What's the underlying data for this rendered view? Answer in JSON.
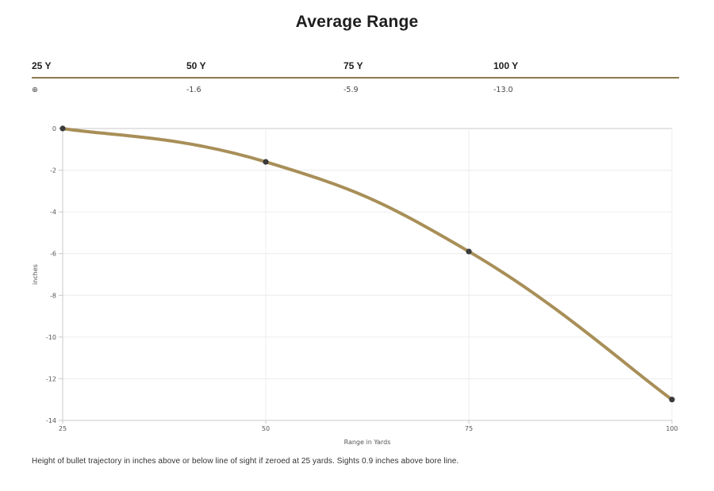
{
  "page": {
    "title": "Average Range",
    "caption": "Height of bullet trajectory in inches above or below line of sight if zeroed at 25 yards. Sights 0.9 inches above bore line."
  },
  "table": {
    "headers": [
      "25 Y",
      "50 Y",
      "75 Y",
      "100 Y"
    ],
    "first_cell_icon": "crosshair-icon",
    "first_cell_glyph": "⊕",
    "values": [
      "-1.6",
      "-5.9",
      "-13.0"
    ]
  },
  "chart_data": {
    "type": "line",
    "x": [
      25,
      50,
      75,
      100
    ],
    "series": [
      {
        "values": [
          0,
          -1.6,
          -5.9,
          -13.0
        ],
        "color": "#a88f58",
        "marker_color": "#3a3a3a"
      }
    ],
    "xlabel": "Range in Yards",
    "ylabel": "inches",
    "xlim": [
      25,
      100
    ],
    "ylim": [
      -14,
      0
    ],
    "xticks": [
      25,
      50,
      75,
      100
    ],
    "yticks": [
      0,
      -2,
      -4,
      -6,
      -8,
      -10,
      -12,
      -14
    ],
    "grid": true
  }
}
